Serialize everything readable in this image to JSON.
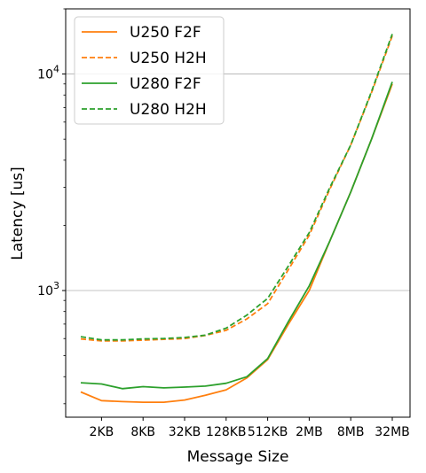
{
  "chart_data": {
    "type": "line",
    "xlabel": "Message Size",
    "ylabel": "Latency [us]",
    "x_tick_labels": [
      "2KB",
      "8KB",
      "32KB",
      "128KB",
      "512KB",
      "2MB",
      "8MB",
      "32MB"
    ],
    "y_tick_labels": [
      "10^3",
      "10^4"
    ],
    "yscale": "log",
    "ylim": [
      260,
      20000
    ],
    "grid": "horizontal major lines",
    "legend_position": "top-left",
    "x": [
      "1KB",
      "2KB",
      "4KB",
      "8KB",
      "16KB",
      "32KB",
      "64KB",
      "128KB",
      "256KB",
      "512KB",
      "1MB",
      "2MB",
      "4MB",
      "8MB",
      "16MB",
      "32MB"
    ],
    "series": [
      {
        "name": "U250 F2F",
        "color": "#ff7f0e",
        "style": "solid",
        "values": [
          340,
          310,
          307,
          305,
          305,
          312,
          328,
          348,
          395,
          480,
          700,
          1000,
          1700,
          2850,
          5000,
          9000
        ]
      },
      {
        "name": "U250 H2H",
        "color": "#ff7f0e",
        "style": "dashed",
        "values": [
          598,
          585,
          585,
          590,
          595,
          600,
          620,
          655,
          740,
          870,
          1250,
          1800,
          2950,
          4700,
          8200,
          15000
        ]
      },
      {
        "name": "U280 F2F",
        "color": "#2ca02c",
        "style": "solid",
        "values": [
          375,
          370,
          352,
          360,
          355,
          358,
          362,
          373,
          400,
          485,
          720,
          1050,
          1700,
          2850,
          5000,
          9200
        ]
      },
      {
        "name": "U280 H2H",
        "color": "#2ca02c",
        "style": "dashed",
        "values": [
          612,
          592,
          592,
          598,
          600,
          607,
          622,
          670,
          770,
          920,
          1300,
          1850,
          3000,
          4700,
          8300,
          15300
        ]
      }
    ]
  }
}
